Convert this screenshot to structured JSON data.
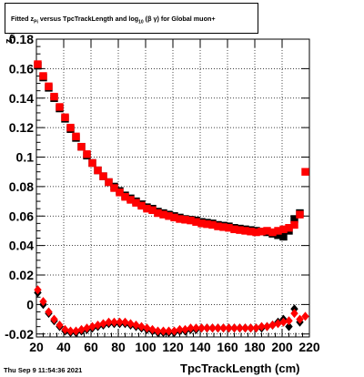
{
  "chart_data": {
    "type": "scatter",
    "title_parts": {
      "prefix": "Fitted  z",
      "z_sub": "Pi",
      "middle": "  versus TpcTrackLength and log",
      "log_sub": "10",
      "suffix": " (β  γ) for Global muon+"
    },
    "xlabel": "TpcTrackLength (cm)",
    "ylabel_main": "z",
    "ylabel_sub": "Pi",
    "xlim": [
      20,
      220
    ],
    "ylim": [
      -0.022,
      0.18
    ],
    "x_ticks": [
      20,
      40,
      60,
      80,
      100,
      120,
      140,
      160,
      180,
      200,
      220
    ],
    "y_ticks": [
      -0.02,
      0,
      0.02,
      0.04,
      0.06,
      0.08,
      0.1,
      0.12,
      0.14,
      0.16,
      0.18
    ],
    "y_tick_labels": [
      "-0.02",
      "0",
      "0.02",
      "0.04",
      "0.06",
      "0.08",
      "0.1",
      "0.12",
      "0.14",
      "0.16",
      "0.18"
    ],
    "grid": true,
    "series": [
      {
        "marker": "square",
        "color": "#000000",
        "x": [
          21,
          25,
          29,
          33,
          37,
          41,
          45,
          49,
          53,
          57,
          61,
          65,
          69,
          73,
          77,
          81,
          85,
          89,
          93,
          97,
          101,
          105,
          109,
          113,
          117,
          121,
          125,
          129,
          133,
          137,
          141,
          145,
          149,
          153,
          157,
          161,
          165,
          169,
          173,
          177,
          181,
          185,
          189,
          193,
          197,
          201,
          205,
          209,
          213
        ],
        "y": [
          0.162,
          0.154,
          0.147,
          0.14,
          0.133,
          0.126,
          0.119,
          0.113,
          0.107,
          0.101,
          0.096,
          0.091,
          0.087,
          0.083,
          0.08,
          0.077,
          0.074,
          0.072,
          0.07,
          0.068,
          0.066,
          0.065,
          0.063,
          0.062,
          0.061,
          0.06,
          0.059,
          0.058,
          0.0575,
          0.057,
          0.056,
          0.0555,
          0.055,
          0.054,
          0.0535,
          0.053,
          0.052,
          0.0515,
          0.051,
          0.0505,
          0.05,
          0.0495,
          0.049,
          0.048,
          0.047,
          0.046,
          0.05,
          0.058,
          0.062
        ]
      },
      {
        "marker": "square",
        "color": "#ff0000",
        "x": [
          21,
          25,
          29,
          33,
          37,
          41,
          45,
          49,
          53,
          57,
          61,
          65,
          69,
          73,
          77,
          81,
          85,
          89,
          93,
          97,
          101,
          105,
          109,
          113,
          117,
          121,
          125,
          129,
          133,
          137,
          141,
          145,
          149,
          153,
          157,
          161,
          165,
          169,
          173,
          177,
          181,
          185,
          189,
          193,
          197,
          201,
          205,
          209,
          213,
          217
        ],
        "y": [
          0.163,
          0.155,
          0.148,
          0.141,
          0.134,
          0.127,
          0.12,
          0.114,
          0.107,
          0.102,
          0.096,
          0.091,
          0.087,
          0.083,
          0.079,
          0.076,
          0.073,
          0.071,
          0.069,
          0.067,
          0.065,
          0.064,
          0.062,
          0.061,
          0.06,
          0.059,
          0.058,
          0.0575,
          0.057,
          0.056,
          0.055,
          0.0545,
          0.054,
          0.053,
          0.0525,
          0.052,
          0.051,
          0.0505,
          0.05,
          0.0495,
          0.049,
          0.0495,
          0.05,
          0.049,
          0.05,
          0.051,
          0.052,
          0.054,
          0.061,
          0.09
        ]
      },
      {
        "marker": "diamond",
        "color": "#000000",
        "x": [
          21,
          25,
          29,
          33,
          37,
          41,
          45,
          49,
          53,
          57,
          61,
          65,
          69,
          73,
          77,
          81,
          85,
          89,
          93,
          97,
          101,
          105,
          109,
          113,
          117,
          121,
          125,
          129,
          133,
          137,
          141,
          145,
          149,
          153,
          157,
          161,
          165,
          169,
          173,
          177,
          181,
          185,
          189,
          193,
          197,
          201,
          205,
          209,
          213
        ],
        "y": [
          0.008,
          0.0,
          -0.006,
          -0.011,
          -0.015,
          -0.018,
          -0.019,
          -0.019,
          -0.018,
          -0.017,
          -0.016,
          -0.015,
          -0.014,
          -0.013,
          -0.013,
          -0.013,
          -0.013,
          -0.014,
          -0.015,
          -0.016,
          -0.017,
          -0.018,
          -0.019,
          -0.019,
          -0.019,
          -0.019,
          -0.018,
          -0.018,
          -0.017,
          -0.017,
          -0.016,
          -0.016,
          -0.016,
          -0.016,
          -0.016,
          -0.016,
          -0.016,
          -0.016,
          -0.016,
          -0.016,
          -0.016,
          -0.016,
          -0.015,
          -0.014,
          -0.012,
          -0.01,
          -0.015,
          -0.003,
          -0.012
        ]
      },
      {
        "marker": "diamond",
        "color": "#ff0000",
        "x": [
          21,
          25,
          29,
          33,
          37,
          41,
          45,
          49,
          53,
          57,
          61,
          65,
          69,
          73,
          77,
          81,
          85,
          89,
          93,
          97,
          101,
          105,
          109,
          113,
          117,
          121,
          125,
          129,
          133,
          137,
          141,
          145,
          149,
          153,
          157,
          161,
          165,
          169,
          173,
          177,
          181,
          185,
          189,
          193,
          197,
          201,
          205,
          209,
          213,
          217
        ],
        "y": [
          0.01,
          0.002,
          -0.005,
          -0.01,
          -0.014,
          -0.017,
          -0.018,
          -0.018,
          -0.017,
          -0.016,
          -0.015,
          -0.014,
          -0.013,
          -0.012,
          -0.012,
          -0.012,
          -0.012,
          -0.013,
          -0.014,
          -0.015,
          -0.016,
          -0.017,
          -0.018,
          -0.018,
          -0.018,
          -0.018,
          -0.017,
          -0.017,
          -0.016,
          -0.016,
          -0.016,
          -0.016,
          -0.016,
          -0.016,
          -0.016,
          -0.016,
          -0.016,
          -0.016,
          -0.016,
          -0.016,
          -0.016,
          -0.015,
          -0.015,
          -0.014,
          -0.013,
          -0.012,
          -0.011,
          -0.006,
          -0.01,
          -0.008
        ]
      }
    ]
  },
  "footer": {
    "datestamp": "Thu Sep  9 11:54:36 2021"
  }
}
